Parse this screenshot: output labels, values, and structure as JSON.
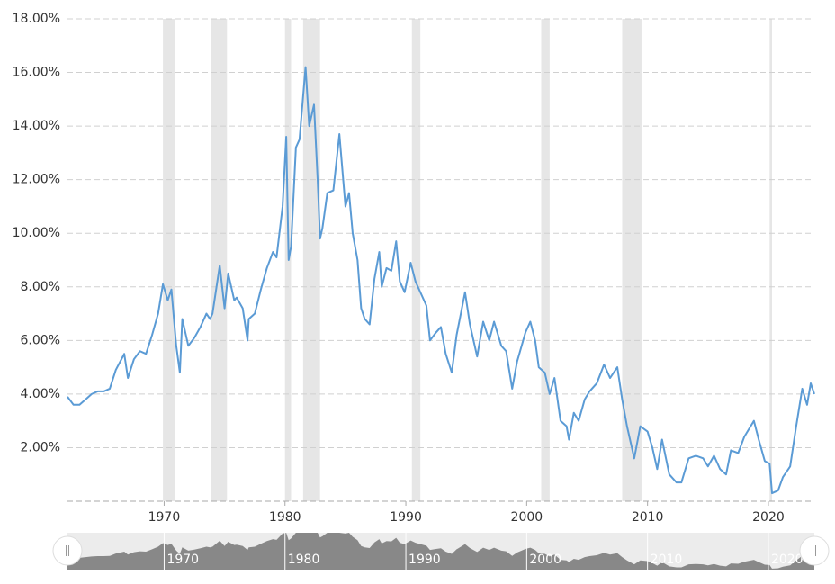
{
  "chart_data": {
    "type": "line",
    "x": [
      1962,
      1962.5,
      1963,
      1963.5,
      1964,
      1964.5,
      1965,
      1965.5,
      1966,
      1966.7,
      1967,
      1967.5,
      1968,
      1968.5,
      1969,
      1969.5,
      1969.9,
      1970.3,
      1970.6,
      1971,
      1971.3,
      1971.5,
      1972,
      1972.5,
      1973,
      1973.5,
      1973.8,
      1974,
      1974.6,
      1975,
      1975.3,
      1975.8,
      1976,
      1976.5,
      1976.9,
      1977,
      1977.5,
      1978,
      1978.5,
      1979,
      1979.3,
      1979.8,
      1980.1,
      1980.3,
      1980.5,
      1980.9,
      1981.2,
      1981.7,
      1982,
      1982.4,
      1982.7,
      1982.9,
      1983.1,
      1983.5,
      1984,
      1984.5,
      1985,
      1985.3,
      1985.6,
      1986,
      1986.3,
      1986.6,
      1987,
      1987.4,
      1987.8,
      1988,
      1988.4,
      1988.8,
      1989.2,
      1989.5,
      1989.9,
      1990.4,
      1990.8,
      1991.2,
      1991.7,
      1992,
      1992.5,
      1992.9,
      1993.3,
      1993.8,
      1994.2,
      1994.9,
      1995.3,
      1995.9,
      1996.4,
      1996.9,
      1997.3,
      1997.9,
      1998.3,
      1998.8,
      1999.2,
      1999.9,
      2000.3,
      2000.7,
      2001,
      2001.5,
      2001.9,
      2002.3,
      2002.8,
      2003.3,
      2003.5,
      2003.9,
      2004.3,
      2004.8,
      2005.2,
      2005.8,
      2006.4,
      2006.9,
      2007.5,
      2007.9,
      2008.3,
      2008.9,
      2009.4,
      2010,
      2010.4,
      2010.8,
      2011.2,
      2011.8,
      2012.4,
      2012.8,
      2013.4,
      2014,
      2014.6,
      2015,
      2015.5,
      2016,
      2016.5,
      2016.9,
      2017.5,
      2018,
      2018.8,
      2019.2,
      2019.7,
      2020.1,
      2020.3,
      2020.8,
      2021.2,
      2021.8,
      2022.3,
      2022.8,
      2023.2,
      2023.5,
      2023.8
    ],
    "series": [
      {
        "color": "#5b9bd5",
        "values": [
          3.9,
          3.6,
          3.6,
          3.8,
          4.0,
          4.1,
          4.1,
          4.2,
          4.9,
          5.5,
          4.6,
          5.3,
          5.6,
          5.5,
          6.2,
          7.0,
          8.1,
          7.5,
          7.9,
          5.8,
          4.8,
          6.8,
          5.8,
          6.1,
          6.5,
          7.0,
          6.8,
          7.0,
          8.8,
          7.2,
          8.5,
          7.5,
          7.6,
          7.2,
          6.0,
          6.8,
          7.0,
          7.9,
          8.7,
          9.3,
          9.1,
          11.0,
          13.6,
          9.0,
          9.5,
          13.2,
          13.5,
          16.2,
          14.0,
          14.8,
          12.0,
          9.8,
          10.2,
          11.5,
          11.6,
          13.7,
          11.0,
          11.5,
          10.0,
          9.0,
          7.2,
          6.8,
          6.6,
          8.3,
          9.3,
          8.0,
          8.7,
          8.6,
          9.7,
          8.2,
          7.8,
          8.9,
          8.2,
          7.8,
          7.3,
          6.0,
          6.3,
          6.5,
          5.5,
          4.8,
          6.2,
          7.8,
          6.6,
          5.4,
          6.7,
          6.0,
          6.7,
          5.8,
          5.6,
          4.2,
          5.2,
          6.3,
          6.7,
          6.0,
          5.0,
          4.8,
          4.0,
          4.6,
          3.0,
          2.8,
          2.3,
          3.3,
          3.0,
          3.8,
          4.1,
          4.4,
          5.1,
          4.6,
          5.0,
          3.8,
          2.8,
          1.6,
          2.8,
          2.6,
          2.0,
          1.2,
          2.3,
          1.0,
          0.7,
          0.7,
          1.6,
          1.7,
          1.6,
          1.3,
          1.7,
          1.2,
          1.0,
          1.9,
          1.8,
          2.4,
          3.0,
          2.3,
          1.5,
          1.4,
          0.3,
          0.4,
          0.9,
          1.3,
          2.8,
          4.2,
          3.6,
          4.4,
          4.0
        ]
      }
    ],
    "recessions": [
      [
        1969.9,
        1970.9
      ],
      [
        1973.9,
        1975.2
      ],
      [
        1980,
        1980.5
      ],
      [
        1981.5,
        1982.9
      ],
      [
        1990.5,
        1991.2
      ],
      [
        2001.2,
        2001.9
      ],
      [
        2007.9,
        2009.5
      ],
      [
        2020.1,
        2020.3
      ]
    ],
    "xlim": [
      1962,
      2023.8
    ],
    "xticks": [
      1970,
      1980,
      1990,
      2000,
      2010,
      2020
    ],
    "ylim": [
      0,
      18
    ],
    "yticks": [
      {
        "value": 2,
        "label": "2.00%"
      },
      {
        "value": 4,
        "label": "4.00%"
      },
      {
        "value": 6,
        "label": "6.00%"
      },
      {
        "value": 8,
        "label": "8.00%"
      },
      {
        "value": 10,
        "label": "10.00%"
      },
      {
        "value": 12,
        "label": "12.00%"
      },
      {
        "value": 14,
        "label": "14.00%"
      },
      {
        "value": 16,
        "label": "16.00%"
      },
      {
        "value": 18,
        "label": "18.00%"
      }
    ],
    "grid": true
  }
}
